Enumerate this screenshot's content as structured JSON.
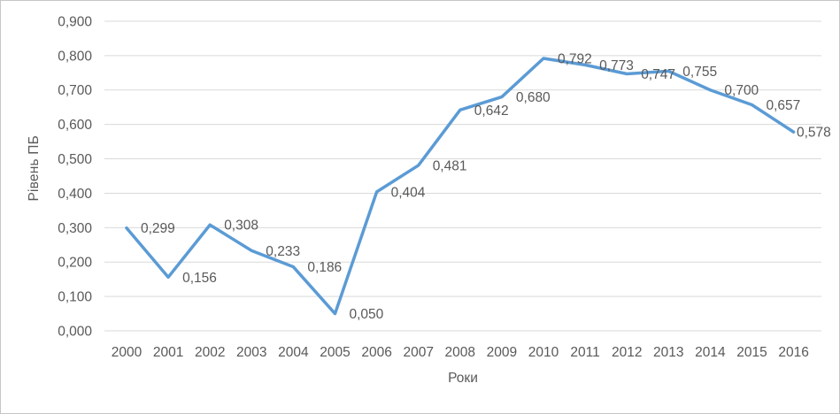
{
  "chart_data": {
    "type": "line",
    "title": "",
    "xlabel": "Роки",
    "ylabel": "Рівень ПБ",
    "categories": [
      "2000",
      "2001",
      "2002",
      "2003",
      "2004",
      "2005",
      "2006",
      "2007",
      "2008",
      "2009",
      "2010",
      "2011",
      "2012",
      "2013",
      "2014",
      "2015",
      "2016"
    ],
    "values": [
      0.299,
      0.156,
      0.308,
      0.233,
      0.186,
      0.05,
      0.404,
      0.481,
      0.642,
      0.68,
      0.792,
      0.773,
      0.747,
      0.755,
      0.7,
      0.657,
      0.578
    ],
    "data_labels": [
      "0,299",
      "0,156",
      "0,308",
      "0,233",
      "0,186",
      "0,050",
      "0,404",
      "0,481",
      "0,642",
      "0,680",
      "0,792",
      "0,773",
      "0,747",
      "0,755",
      "0,700",
      "0,657",
      "0,578"
    ],
    "y_ticks": [
      "0,000",
      "0,100",
      "0,200",
      "0,300",
      "0,400",
      "0,500",
      "0,600",
      "0,700",
      "0,800",
      "0,900"
    ],
    "y_tick_values": [
      0,
      0.1,
      0.2,
      0.3,
      0.4,
      0.5,
      0.6,
      0.7,
      0.8,
      0.9
    ],
    "ylim": [
      0,
      0.9
    ],
    "grid": true,
    "legend": "none",
    "line_color": "#5B9BD5",
    "text_color": "#595959",
    "gridline_color": "#D9D9D9"
  }
}
